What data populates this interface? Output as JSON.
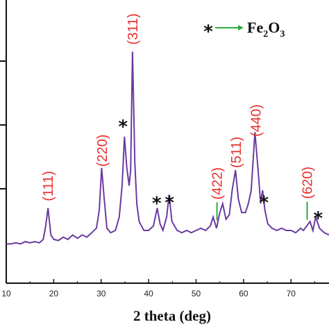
{
  "chart_data": {
    "type": "line",
    "title": "",
    "xlabel": "2 theta (deg)",
    "ylabel": "",
    "xlim": [
      10,
      78
    ],
    "ylim": [
      0,
      100
    ],
    "xticks": [
      "10",
      "20",
      "30",
      "40",
      "50",
      "60",
      "70"
    ],
    "xtick_values": [
      10,
      20,
      30,
      40,
      50,
      60,
      70
    ],
    "grid": false,
    "line_color": "#6a3aa0",
    "label_color": "#e8302c",
    "marker_color": "#2eaa3a",
    "series": [
      {
        "x": [
          10,
          11,
          12,
          13,
          14,
          15,
          16,
          17,
          17.8,
          18.3,
          18.8,
          19.4,
          20,
          21,
          22,
          23,
          24,
          25,
          26,
          27,
          28,
          29,
          29.6,
          30.1,
          30.6,
          31.2,
          32,
          33,
          33.8,
          34.4,
          34.9,
          35.4,
          35.9,
          36.2,
          36.6,
          37.1,
          37.5,
          38,
          39,
          40,
          41,
          41.8,
          42.4,
          43,
          43.8,
          44.3,
          44.9,
          46,
          47,
          48,
          49,
          50,
          51,
          52,
          53,
          53.6,
          54.3,
          55,
          55.6,
          56.3,
          57,
          57.6,
          58.3,
          58.9,
          59.6,
          60.4,
          61,
          61.6,
          62.4,
          63.1,
          63.6,
          64,
          64.5,
          65.1,
          66,
          67,
          68,
          69,
          70,
          71,
          72,
          72.6,
          73.3,
          74,
          74.6,
          75.2,
          76,
          77,
          78
        ],
        "y": [
          12,
          12,
          12.5,
          12,
          13,
          12.5,
          13,
          12.5,
          14,
          20,
          28,
          16,
          14,
          13.5,
          15,
          14,
          16,
          14.5,
          16,
          15,
          17,
          19,
          27,
          46,
          33,
          19,
          17,
          18,
          24,
          38,
          60,
          46,
          38,
          45,
          98,
          48,
          30,
          22,
          18,
          18,
          20,
          28,
          21,
          18,
          24,
          34,
          22,
          18,
          17,
          18,
          17,
          18,
          19,
          18,
          20,
          24,
          19,
          26,
          30,
          23,
          25,
          36,
          45,
          32,
          26,
          26,
          30,
          36,
          62,
          44,
          30,
          36,
          27,
          21,
          19,
          18,
          19,
          18,
          18,
          17,
          19,
          18,
          20,
          22,
          18,
          24,
          19,
          17,
          16
        ]
      }
    ],
    "annotations": [
      {
        "text": "(111)",
        "x": 18.8
      },
      {
        "text": "(220)",
        "x": 30.2
      },
      {
        "text": "(311)",
        "x": 36.6
      },
      {
        "text": "(422)",
        "x": 54.4
      },
      {
        "text": "(511)",
        "x": 58.4
      },
      {
        "text": "(440)",
        "x": 62.6
      },
      {
        "text": "(620)",
        "x": 73.4
      }
    ],
    "star_markers": [
      34.6,
      41.7,
      44.4,
      64.3,
      75.7
    ],
    "legend": {
      "symbol": "*",
      "label": "Fe",
      "sub1": "2",
      "mid": "O",
      "sub2": "3",
      "position": "top-right"
    }
  }
}
